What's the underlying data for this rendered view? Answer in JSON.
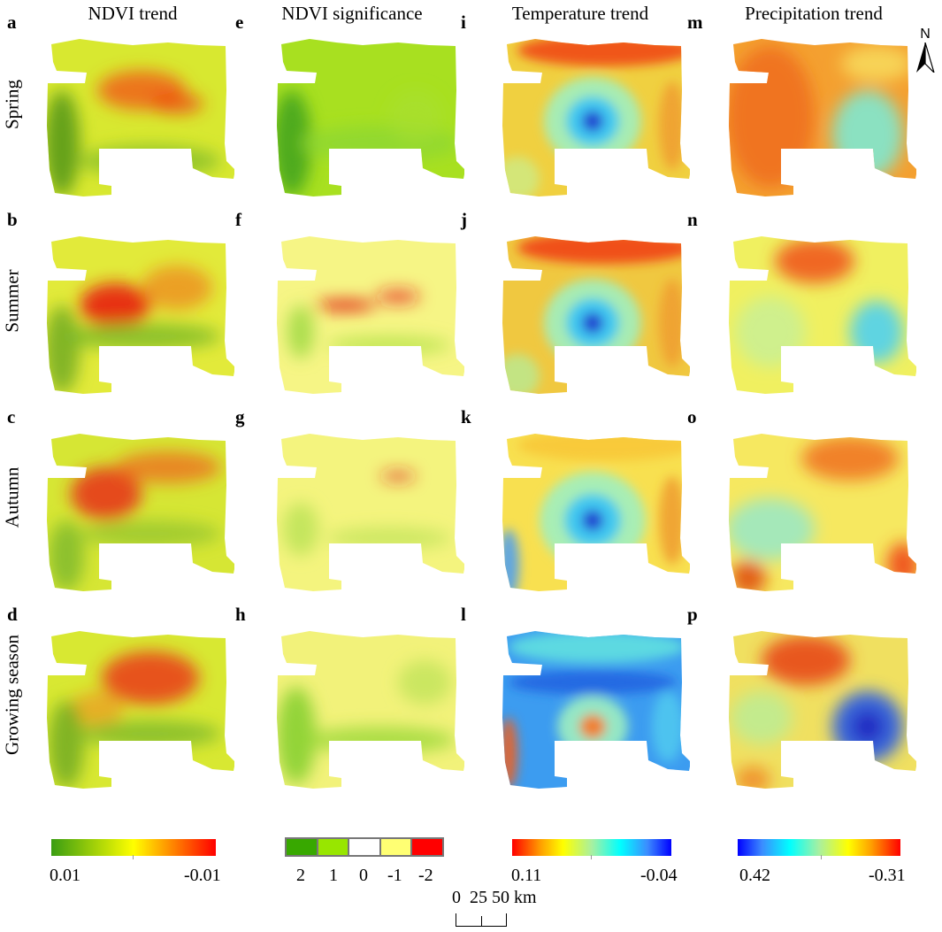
{
  "columns": [
    "NDVI trend",
    "NDVI significance",
    "Temperature trend",
    "Precipitation trend"
  ],
  "rows": [
    "Spring",
    "Summer",
    "Autumn",
    "Growing season"
  ],
  "panel_letters": [
    [
      "a",
      "b",
      "c",
      "d"
    ],
    [
      "e",
      "f",
      "g",
      "h"
    ],
    [
      "i",
      "j",
      "k",
      "l"
    ],
    [
      "m",
      "n",
      "o",
      "p"
    ]
  ],
  "legends": {
    "ndvi_trend": {
      "min_label": "0.01",
      "max_label": "-0.01",
      "colors": [
        "#3a9d12",
        "#ffff00",
        "#ff0000"
      ]
    },
    "ndvi_significance": {
      "labels": [
        "2",
        "1",
        "0",
        "-1",
        "-2"
      ],
      "colors": [
        "#38a800",
        "#98e600",
        "#ffffff",
        "#ffff73",
        "#ff0000"
      ]
    },
    "temperature_trend": {
      "min_label": "0.11",
      "max_label": "-0.04",
      "colors": [
        "#ff0000",
        "#ffff00",
        "#a8f0a0",
        "#00ffff",
        "#0000ff"
      ]
    },
    "precipitation_trend": {
      "min_label": "0.42",
      "max_label": "-0.31",
      "colors": [
        "#0000ff",
        "#00ffff",
        "#a8f0a0",
        "#ffff00",
        "#ff0000"
      ]
    }
  },
  "scale_bar": {
    "text": "0  25 50 km"
  },
  "north_arrow": {
    "label": "N"
  }
}
